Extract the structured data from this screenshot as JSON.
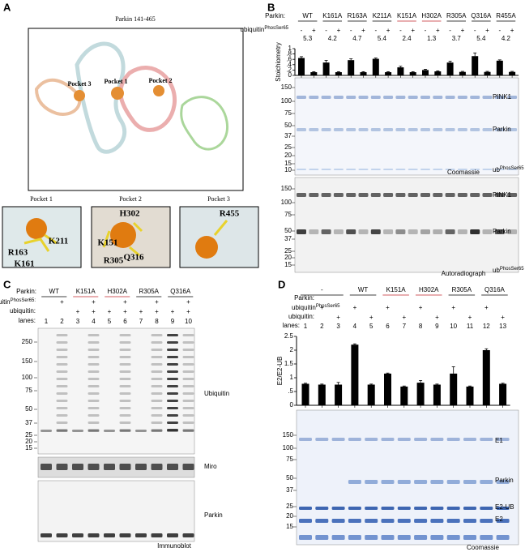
{
  "panel_labels": [
    "A",
    "B",
    "C",
    "D"
  ],
  "panel_a": {
    "title": "Parkin 141-465",
    "pockets_in_structure": [
      "Pocket 3",
      "Pocket 1",
      "Pocket 2"
    ],
    "insets": [
      {
        "title": "Pocket 1",
        "residues": [
          "R163",
          "K211",
          "K161"
        ]
      },
      {
        "title": "Pocket 2",
        "residues": [
          "H302",
          "K151",
          "Q316",
          "R305"
        ]
      },
      {
        "title": "Pocket 3",
        "residues": [
          "R455"
        ]
      }
    ]
  },
  "panel_b": {
    "parkin_label": "Parkin:",
    "mutants": [
      {
        "label": "WT",
        "color": "#000000"
      },
      {
        "label": "K161A",
        "color": "#000000"
      },
      {
        "label": "R163A",
        "color": "#000000"
      },
      {
        "label": "K211A",
        "color": "#000000"
      },
      {
        "label": "K151A",
        "color": "#c0272d"
      },
      {
        "label": "H302A",
        "color": "#c0272d"
      },
      {
        "label": "R305A",
        "color": "#000000"
      },
      {
        "label": "Q316A",
        "color": "#000000"
      },
      {
        "label": "R455A",
        "color": "#000000"
      }
    ],
    "phos_label": {
      "base": "ubiquitin",
      "sup": "PhosSer65"
    },
    "phos_row": [
      "-",
      "+",
      "-",
      "+",
      "-",
      "+",
      "-",
      "+",
      "-",
      "+",
      "-",
      "+",
      "-",
      "+",
      "-",
      "+",
      "-",
      "+"
    ],
    "fold_changes": [
      "5.3",
      "4.2",
      "4.7",
      "5.4",
      "2.4",
      "1.3",
      "3.7",
      "5.4",
      "4.2"
    ],
    "gel1": {
      "markers": [
        150,
        100,
        75,
        50,
        37,
        25,
        20,
        15,
        10
      ],
      "bands": [
        "PINK1",
        "Parkin"
      ],
      "ub_label": {
        "base": "ub",
        "sup": "PhosSer65"
      },
      "method": "Coomassie"
    },
    "gel2": {
      "markers": [
        150,
        100,
        75,
        50,
        37,
        25,
        20,
        15
      ],
      "bands": [
        "PINK1",
        "Parkin"
      ],
      "ub_label": {
        "base": "ub",
        "sup": "PhosSer65"
      },
      "method": "Autoradiograph"
    }
  },
  "panel_c": {
    "parkin_label": "Parkin:",
    "mutants": [
      {
        "label": "WT",
        "color": "#000000"
      },
      {
        "label": "K151A",
        "color": "#c0272d"
      },
      {
        "label": "H302A",
        "color": "#c0272d"
      },
      {
        "label": "R305A",
        "color": "#000000"
      },
      {
        "label": "Q316A",
        "color": "#000000"
      }
    ],
    "phos_label": {
      "base": "ubiquitin",
      "sup": "PhosSer65:"
    },
    "ub_label": "ubiquitin:",
    "lanes_label": "lanes:",
    "phos_row": [
      null,
      "+",
      null,
      "+",
      null,
      "+",
      null,
      "+",
      null,
      "+"
    ],
    "ub_row": [
      null,
      null,
      "+",
      "+",
      "+",
      "+",
      "+",
      "+",
      "+",
      "+"
    ],
    "lanes": [
      "1",
      "2",
      "3",
      "4",
      "5",
      "6",
      "7",
      "8",
      "9",
      "10"
    ],
    "markers": [
      250,
      150,
      100,
      75,
      50,
      37,
      25,
      20,
      15
    ],
    "blots": [
      "Ubiquitin",
      "Miro",
      "Parkin"
    ],
    "method": "Immunoblot"
  },
  "panel_d": {
    "parkin_label": "Parkin:",
    "groups": [
      {
        "label": "-",
        "color": "#000000"
      },
      {
        "label": "WT",
        "color": "#000000"
      },
      {
        "label": "K151A",
        "color": "#c0272d"
      },
      {
        "label": "H302A",
        "color": "#c0272d"
      },
      {
        "label": "R305A",
        "color": "#000000"
      },
      {
        "label": "Q316A",
        "color": "#000000"
      }
    ],
    "phos_label": {
      "base": "ubiquitin",
      "sup": "PhosSer65"
    },
    "ub_label": "ubiquitin:",
    "lanes_label": "lanes:",
    "phos_row": [
      null,
      "+",
      null,
      "+",
      null,
      "+",
      null,
      "+",
      null,
      "+",
      null,
      "+",
      null
    ],
    "ub_row": [
      null,
      null,
      "+",
      null,
      "+",
      null,
      "+",
      null,
      "+",
      null,
      "+",
      null,
      "+"
    ],
    "markers": [
      150,
      100,
      75,
      50,
      37,
      25,
      20,
      15
    ],
    "bands": [
      "E1",
      "Parkin",
      "E2-UB",
      "E2"
    ],
    "method": "Coomassie"
  },
  "chart_data": [
    {
      "type": "bar",
      "y_label": "Stoichiometry",
      "color": "#000000",
      "values": [
        0.65,
        0.12,
        0.48,
        0.12,
        0.57,
        0.12,
        0.62,
        0.12,
        0.3,
        0.12,
        0.2,
        0.15,
        0.48,
        0.13,
        0.72,
        0.13,
        0.55,
        0.13
      ],
      "errors": [
        0.05,
        0.02,
        0.08,
        0.02,
        0.05,
        0.02,
        0.03,
        0.02,
        0.04,
        0.02,
        0.03,
        0.02,
        0.05,
        0.02,
        0.12,
        0.02,
        0.03,
        0.02
      ],
      "ylim": [
        0,
        1
      ],
      "yticks": [
        0,
        {
          "value": 0.2,
          "label": ".2"
        },
        {
          "value": 0.4,
          "label": ".4"
        },
        {
          "value": 0.6,
          "label": ".6"
        },
        {
          "value": 0.8,
          "label": ".8"
        },
        1
      ]
    },
    {
      "type": "bar",
      "y_label": "E2/E2-UB",
      "color": "#000000",
      "categories": [
        "1",
        "2",
        "3",
        "4",
        "5",
        "6",
        "7",
        "8",
        "9",
        "10",
        "11",
        "12",
        "13"
      ],
      "values": [
        0.78,
        0.75,
        0.75,
        2.2,
        0.75,
        1.15,
        0.68,
        0.82,
        0.75,
        1.15,
        0.68,
        2.0,
        0.78
      ],
      "errors": [
        0.02,
        0.02,
        0.08,
        0.03,
        0.02,
        0.02,
        0.02,
        0.08,
        0.02,
        0.25,
        0.02,
        0.05,
        0.02
      ],
      "ylim": [
        0,
        2.5
      ],
      "yticks": [
        0,
        {
          "value": 0.5,
          "label": ".5"
        },
        1,
        1.5,
        2,
        2.5
      ]
    }
  ]
}
